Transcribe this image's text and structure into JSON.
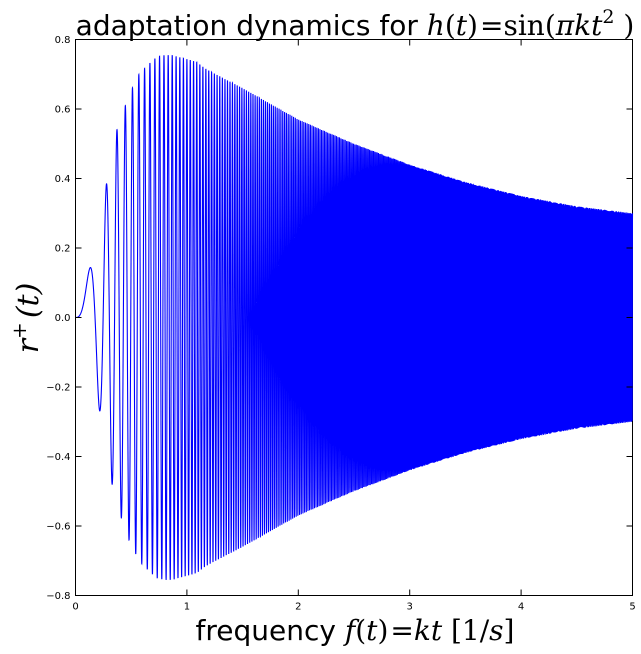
{
  "chart_data": {
    "type": "line",
    "title": {
      "prefix": "adaptation dynamics for ",
      "formula_parts": [
        "h",
        "(",
        "t",
        ")",
        "=",
        "sin",
        "(",
        "π",
        "k",
        "t",
        "2",
        " )"
      ]
    },
    "xlabel": {
      "prefix": "frequency ",
      "formula_parts": [
        "f",
        "(",
        "t",
        ")",
        "=",
        "k",
        "t",
        "  [1/",
        "s",
        "]"
      ]
    },
    "ylabel": {
      "symbol": "r",
      "superscript": "+",
      "args": "(t)"
    },
    "xlim": [
      0,
      5
    ],
    "ylim": [
      -0.8,
      0.8
    ],
    "x_ticks": [
      "0",
      "1",
      "2",
      "3",
      "4",
      "5"
    ],
    "y_ticks": [
      "−0.8",
      "−0.6",
      "−0.4",
      "−0.2",
      "0.0",
      "0.2",
      "0.4",
      "0.6",
      "0.8"
    ],
    "grid": false,
    "series": [
      {
        "color": "#0000ff",
        "x": [
          0,
          0.18,
          0.35,
          0.48,
          0.57,
          0.66,
          0.73,
          0.8,
          0.87,
          0.92,
          0.98,
          1.04,
          1.09,
          1.15,
          1.2,
          1.5,
          2.0,
          2.5,
          3.0,
          3.5,
          4.0,
          4.5,
          5.0
        ],
        "envelope": [
          0.0,
          0.2,
          0.52,
          0.64,
          0.7,
          0.73,
          0.75,
          0.755,
          0.755,
          0.75,
          0.745,
          0.74,
          0.735,
          0.72,
          0.71,
          0.66,
          0.57,
          0.5,
          0.44,
          0.39,
          0.35,
          0.32,
          0.3
        ]
      }
    ]
  }
}
